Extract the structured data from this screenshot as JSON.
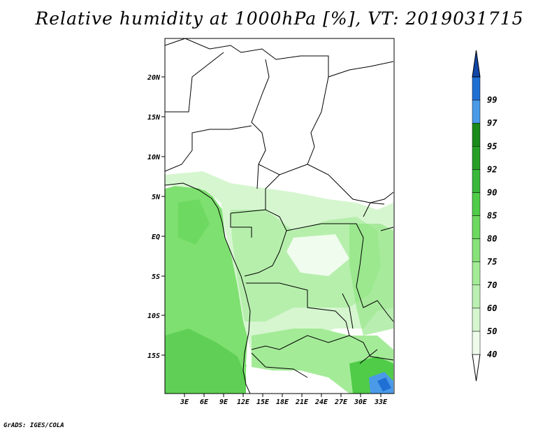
{
  "title": "Relative humidity at 1000hPa [%], VT: 2019031715",
  "credit": "GrADS: IGES/COLA",
  "map": {
    "lon_ticks": [
      "3E",
      "6E",
      "9E",
      "12E",
      "15E",
      "18E",
      "21E",
      "24E",
      "27E",
      "30E",
      "33E"
    ],
    "lat_ticks": [
      "20N",
      "15N",
      "10N",
      "5N",
      "EQ",
      "5S",
      "10S",
      "15S"
    ]
  },
  "colorbar": {
    "levels": [
      "40",
      "50",
      "60",
      "70",
      "75",
      "80",
      "85",
      "90",
      "92",
      "95",
      "97",
      "99"
    ],
    "colors": [
      "#ffffff",
      "#eefbea",
      "#d6f6d0",
      "#bcefb3",
      "#a4eb98",
      "#88e27a",
      "#6ed961",
      "#50cc48",
      "#3ab83a",
      "#279f27",
      "#1a8a1a",
      "#4a9ae8",
      "#1f6fd4",
      "#1246a8"
    ]
  },
  "colors": {
    "land_high": "#6ed961",
    "land_mid": "#a4eb98",
    "land_low": "#d6f6d0",
    "ocean": "#7ee070",
    "ocean_dark": "#5fd055",
    "high_blue": "#4a9ae8",
    "borders": "#000000"
  }
}
